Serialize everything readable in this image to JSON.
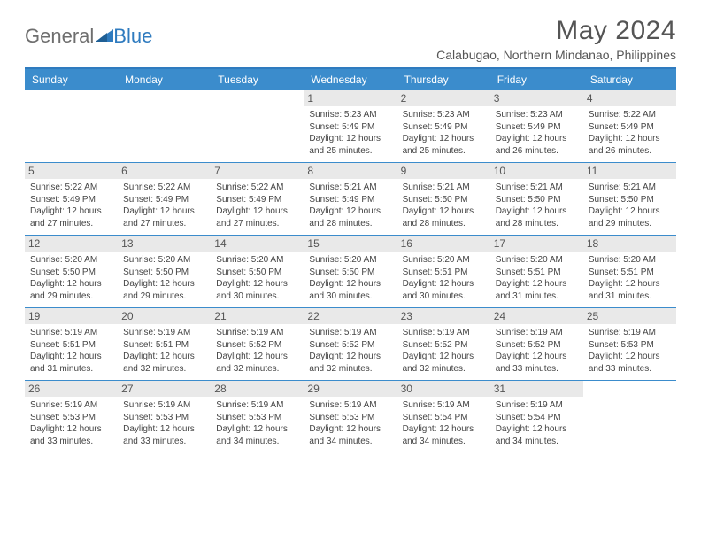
{
  "logo": {
    "general": "General",
    "blue": "Blue"
  },
  "title": "May 2024",
  "location": "Calabugao, Northern Mindanao, Philippines",
  "dayNames": [
    "Sunday",
    "Monday",
    "Tuesday",
    "Wednesday",
    "Thursday",
    "Friday",
    "Saturday"
  ],
  "colors": {
    "accent": "#3b8ccc",
    "accentDark": "#2f7bbf",
    "dayBg": "#e9e9e9",
    "text": "#444444",
    "titleText": "#555555"
  },
  "weeks": [
    [
      {
        "n": "",
        "sr": "",
        "ss": "",
        "dl": ""
      },
      {
        "n": "",
        "sr": "",
        "ss": "",
        "dl": ""
      },
      {
        "n": "",
        "sr": "",
        "ss": "",
        "dl": ""
      },
      {
        "n": "1",
        "sr": "Sunrise: 5:23 AM",
        "ss": "Sunset: 5:49 PM",
        "dl": "Daylight: 12 hours and 25 minutes."
      },
      {
        "n": "2",
        "sr": "Sunrise: 5:23 AM",
        "ss": "Sunset: 5:49 PM",
        "dl": "Daylight: 12 hours and 25 minutes."
      },
      {
        "n": "3",
        "sr": "Sunrise: 5:23 AM",
        "ss": "Sunset: 5:49 PM",
        "dl": "Daylight: 12 hours and 26 minutes."
      },
      {
        "n": "4",
        "sr": "Sunrise: 5:22 AM",
        "ss": "Sunset: 5:49 PM",
        "dl": "Daylight: 12 hours and 26 minutes."
      }
    ],
    [
      {
        "n": "5",
        "sr": "Sunrise: 5:22 AM",
        "ss": "Sunset: 5:49 PM",
        "dl": "Daylight: 12 hours and 27 minutes."
      },
      {
        "n": "6",
        "sr": "Sunrise: 5:22 AM",
        "ss": "Sunset: 5:49 PM",
        "dl": "Daylight: 12 hours and 27 minutes."
      },
      {
        "n": "7",
        "sr": "Sunrise: 5:22 AM",
        "ss": "Sunset: 5:49 PM",
        "dl": "Daylight: 12 hours and 27 minutes."
      },
      {
        "n": "8",
        "sr": "Sunrise: 5:21 AM",
        "ss": "Sunset: 5:49 PM",
        "dl": "Daylight: 12 hours and 28 minutes."
      },
      {
        "n": "9",
        "sr": "Sunrise: 5:21 AM",
        "ss": "Sunset: 5:50 PM",
        "dl": "Daylight: 12 hours and 28 minutes."
      },
      {
        "n": "10",
        "sr": "Sunrise: 5:21 AM",
        "ss": "Sunset: 5:50 PM",
        "dl": "Daylight: 12 hours and 28 minutes."
      },
      {
        "n": "11",
        "sr": "Sunrise: 5:21 AM",
        "ss": "Sunset: 5:50 PM",
        "dl": "Daylight: 12 hours and 29 minutes."
      }
    ],
    [
      {
        "n": "12",
        "sr": "Sunrise: 5:20 AM",
        "ss": "Sunset: 5:50 PM",
        "dl": "Daylight: 12 hours and 29 minutes."
      },
      {
        "n": "13",
        "sr": "Sunrise: 5:20 AM",
        "ss": "Sunset: 5:50 PM",
        "dl": "Daylight: 12 hours and 29 minutes."
      },
      {
        "n": "14",
        "sr": "Sunrise: 5:20 AM",
        "ss": "Sunset: 5:50 PM",
        "dl": "Daylight: 12 hours and 30 minutes."
      },
      {
        "n": "15",
        "sr": "Sunrise: 5:20 AM",
        "ss": "Sunset: 5:50 PM",
        "dl": "Daylight: 12 hours and 30 minutes."
      },
      {
        "n": "16",
        "sr": "Sunrise: 5:20 AM",
        "ss": "Sunset: 5:51 PM",
        "dl": "Daylight: 12 hours and 30 minutes."
      },
      {
        "n": "17",
        "sr": "Sunrise: 5:20 AM",
        "ss": "Sunset: 5:51 PM",
        "dl": "Daylight: 12 hours and 31 minutes."
      },
      {
        "n": "18",
        "sr": "Sunrise: 5:20 AM",
        "ss": "Sunset: 5:51 PM",
        "dl": "Daylight: 12 hours and 31 minutes."
      }
    ],
    [
      {
        "n": "19",
        "sr": "Sunrise: 5:19 AM",
        "ss": "Sunset: 5:51 PM",
        "dl": "Daylight: 12 hours and 31 minutes."
      },
      {
        "n": "20",
        "sr": "Sunrise: 5:19 AM",
        "ss": "Sunset: 5:51 PM",
        "dl": "Daylight: 12 hours and 32 minutes."
      },
      {
        "n": "21",
        "sr": "Sunrise: 5:19 AM",
        "ss": "Sunset: 5:52 PM",
        "dl": "Daylight: 12 hours and 32 minutes."
      },
      {
        "n": "22",
        "sr": "Sunrise: 5:19 AM",
        "ss": "Sunset: 5:52 PM",
        "dl": "Daylight: 12 hours and 32 minutes."
      },
      {
        "n": "23",
        "sr": "Sunrise: 5:19 AM",
        "ss": "Sunset: 5:52 PM",
        "dl": "Daylight: 12 hours and 32 minutes."
      },
      {
        "n": "24",
        "sr": "Sunrise: 5:19 AM",
        "ss": "Sunset: 5:52 PM",
        "dl": "Daylight: 12 hours and 33 minutes."
      },
      {
        "n": "25",
        "sr": "Sunrise: 5:19 AM",
        "ss": "Sunset: 5:53 PM",
        "dl": "Daylight: 12 hours and 33 minutes."
      }
    ],
    [
      {
        "n": "26",
        "sr": "Sunrise: 5:19 AM",
        "ss": "Sunset: 5:53 PM",
        "dl": "Daylight: 12 hours and 33 minutes."
      },
      {
        "n": "27",
        "sr": "Sunrise: 5:19 AM",
        "ss": "Sunset: 5:53 PM",
        "dl": "Daylight: 12 hours and 33 minutes."
      },
      {
        "n": "28",
        "sr": "Sunrise: 5:19 AM",
        "ss": "Sunset: 5:53 PM",
        "dl": "Daylight: 12 hours and 34 minutes."
      },
      {
        "n": "29",
        "sr": "Sunrise: 5:19 AM",
        "ss": "Sunset: 5:53 PM",
        "dl": "Daylight: 12 hours and 34 minutes."
      },
      {
        "n": "30",
        "sr": "Sunrise: 5:19 AM",
        "ss": "Sunset: 5:54 PM",
        "dl": "Daylight: 12 hours and 34 minutes."
      },
      {
        "n": "31",
        "sr": "Sunrise: 5:19 AM",
        "ss": "Sunset: 5:54 PM",
        "dl": "Daylight: 12 hours and 34 minutes."
      },
      {
        "n": "",
        "sr": "",
        "ss": "",
        "dl": ""
      }
    ]
  ]
}
